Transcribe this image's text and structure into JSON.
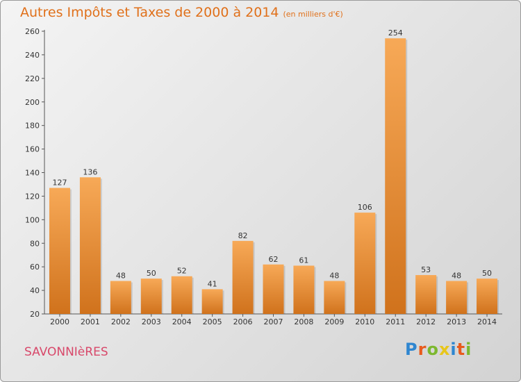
{
  "header": {
    "title": "Autres Impôts et Taxes de 2000 à 2014",
    "subtitle": "(en milliers d'€)"
  },
  "footer": {
    "town": "SAVONNIèRES",
    "logo_letters": [
      "P",
      "r",
      "o",
      "x",
      "i",
      "t",
      "i"
    ],
    "logo_colors": [
      "#2e86d0",
      "#e85a1c",
      "#7cb82f",
      "#e8c61a",
      "#2e86d0",
      "#e85a1c",
      "#7cb82f"
    ]
  },
  "chart_data": {
    "type": "bar",
    "categories": [
      "2000",
      "2001",
      "2002",
      "2003",
      "2004",
      "2005",
      "2006",
      "2007",
      "2008",
      "2009",
      "2010",
      "2011",
      "2012",
      "2013",
      "2014"
    ],
    "values": [
      127,
      136,
      48,
      50,
      52,
      41,
      82,
      62,
      61,
      48,
      106,
      254,
      53,
      48,
      50
    ],
    "data_labels": [
      "127",
      "136",
      "48",
      "50",
      "52",
      "41",
      "82",
      "62",
      "61",
      "48",
      "106",
      "254",
      "53",
      "48",
      "50"
    ],
    "yticks": [
      "20",
      "40",
      "60",
      "80",
      "100",
      "120",
      "140",
      "160",
      "180",
      "200",
      "220",
      "240",
      "260"
    ],
    "ylim": [
      20,
      260
    ],
    "grid": false,
    "bar_color": "#f0922e",
    "bar_color_light": "#f7a957",
    "bar_color_dark": "#d0721c"
  }
}
